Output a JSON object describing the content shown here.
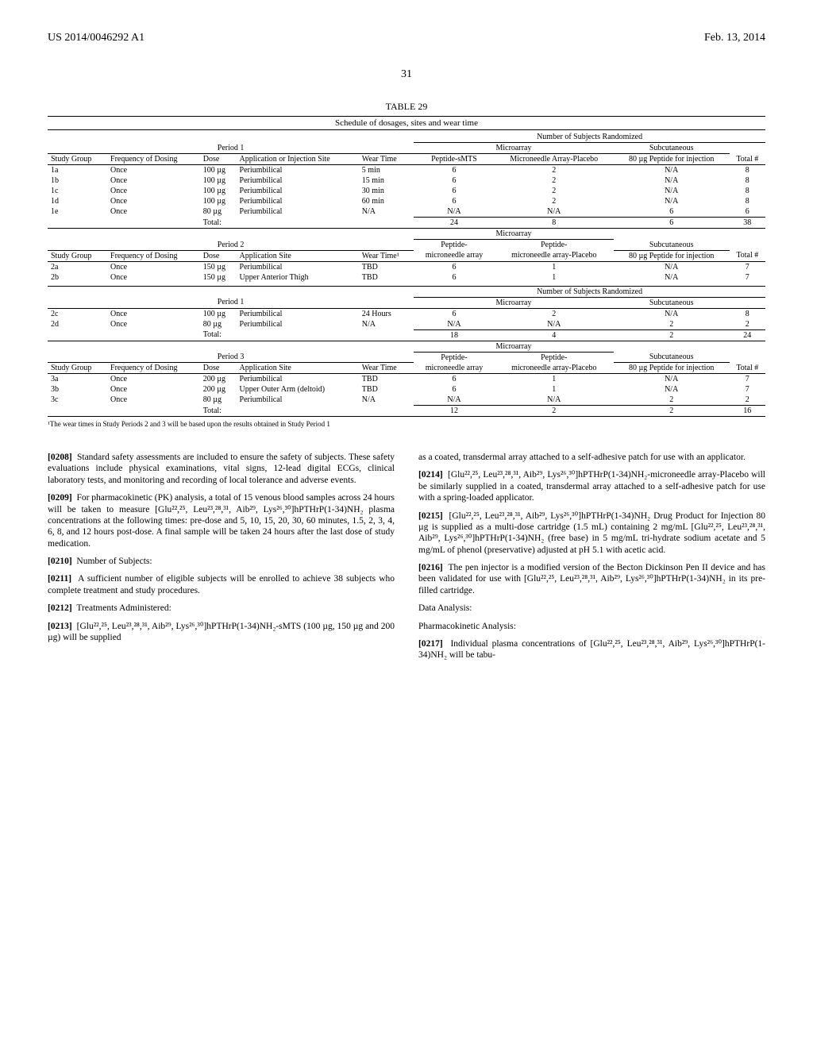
{
  "header": {
    "patent": "US 2014/0046292 A1",
    "date": "Feb. 13, 2014",
    "page": "31"
  },
  "table": {
    "title": "TABLE 29",
    "subtitle": "Schedule of dosages, sites and wear time",
    "footnote": "¹The wear times in Study Periods 2 and 3 will be based upon the results obtained in Study Period 1",
    "randomized_hdr": "Number of Subjects Randomized",
    "microarray": "Microarray",
    "subcutaneous": "Subcutaneous",
    "cols": {
      "study_group": "Study Group",
      "freq": "Frequency of Dosing",
      "dose": "Dose",
      "site": "Application or Injection Site",
      "site2": "Application Site",
      "wear": "Wear Time",
      "wear1": "Wear Time¹",
      "peptide_smts": "Peptide-sMTS",
      "mn_placebo": "Microneedle Array-Placebo",
      "peptide_mn": "Peptide-microneedle array",
      "peptide_mn_pl": "Peptide-microneedle array-Placebo",
      "inj": "80 µg Peptide for injection",
      "total": "Total #"
    },
    "periods": {
      "p1": "Period 1",
      "p2": "Period 2",
      "p3": "Period 3"
    },
    "rows1": [
      {
        "g": "1a",
        "f": "Once",
        "d": "100 µg",
        "s": "Periumbilical",
        "w": "5 min",
        "p": "6",
        "pl": "2",
        "inj": "N/A",
        "t": "8"
      },
      {
        "g": "1b",
        "f": "Once",
        "d": "100 µg",
        "s": "Periumbilical",
        "w": "15 min",
        "p": "6",
        "pl": "2",
        "inj": "N/A",
        "t": "8"
      },
      {
        "g": "1c",
        "f": "Once",
        "d": "100 µg",
        "s": "Periumbilical",
        "w": "30 min",
        "p": "6",
        "pl": "2",
        "inj": "N/A",
        "t": "8"
      },
      {
        "g": "1d",
        "f": "Once",
        "d": "100 µg",
        "s": "Periumbilical",
        "w": "60 min",
        "p": "6",
        "pl": "2",
        "inj": "N/A",
        "t": "8"
      },
      {
        "g": "1e",
        "f": "Once",
        "d": "80 µg",
        "s": "Periumbilical",
        "w": "N/A",
        "p": "N/A",
        "pl": "N/A",
        "inj": "6",
        "t": "6"
      }
    ],
    "total1": {
      "label": "Total:",
      "p": "24",
      "pl": "8",
      "inj": "6",
      "t": "38"
    },
    "rows2": [
      {
        "g": "2a",
        "f": "Once",
        "d": "150 µg",
        "s": "Periumbilical",
        "w": "TBD",
        "p": "6",
        "pl": "1",
        "inj": "N/A",
        "t": "7"
      },
      {
        "g": "2b",
        "f": "Once",
        "d": "150 µg",
        "s": "Upper Anterior Thigh",
        "w": "TBD",
        "p": "6",
        "pl": "1",
        "inj": "N/A",
        "t": "7"
      }
    ],
    "rows2b": [
      {
        "g": "2c",
        "f": "Once",
        "d": "100 µg",
        "s": "Periumbilical",
        "w": "24 Hours",
        "p": "6",
        "pl": "2",
        "inj": "N/A",
        "t": "8"
      },
      {
        "g": "2d",
        "f": "Once",
        "d": "80 µg",
        "s": "Periumbilical",
        "w": "N/A",
        "p": "N/A",
        "pl": "N/A",
        "inj": "2",
        "t": "2"
      }
    ],
    "total2": {
      "label": "Total:",
      "p": "18",
      "pl": "4",
      "inj": "2",
      "t": "24"
    },
    "rows3": [
      {
        "g": "3a",
        "f": "Once",
        "d": "200 µg",
        "s": "Periumbilical",
        "w": "TBD",
        "p": "6",
        "pl": "1",
        "inj": "N/A",
        "t": "7"
      },
      {
        "g": "3b",
        "f": "Once",
        "d": "200 µg",
        "s": "Upper Outer Arm (deltoid)",
        "w": "TBD",
        "p": "6",
        "pl": "1",
        "inj": "N/A",
        "t": "7"
      },
      {
        "g": "3c",
        "f": "Once",
        "d": "80 µg",
        "s": "Periumbilical",
        "w": "N/A",
        "p": "N/A",
        "pl": "N/A",
        "inj": "2",
        "t": "2"
      }
    ],
    "total3": {
      "label": "Total:",
      "p": "12",
      "pl": "2",
      "inj": "2",
      "t": "16"
    }
  },
  "left_col": {
    "p0208": "Standard safety assessments are included to ensure the safety of subjects. These safety evaluations include physical examinations, vital signs, 12-lead digital ECGs, clinical laboratory tests, and monitoring and recording of local tolerance and adverse events.",
    "p0209": "For pharmacokinetic (PK) analysis, a total of 15 venous blood samples across 24 hours will be taken to measure [Glu²²,²⁵, Leu²³,²⁸,³¹, Aib²⁹, Lys²⁶,³⁰]hPTHrP(1-34)NH₂ plasma concentrations at the following times: pre-dose and 5, 10, 15, 20, 30, 60 minutes, 1.5, 2, 3, 4, 6, 8, and 12 hours post-dose. A final sample will be taken 24 hours after the last dose of study medication.",
    "p0210": "Number of Subjects:",
    "p0211": "A sufficient number of eligible subjects will be enrolled to achieve 38 subjects who complete treatment and study procedures.",
    "p0212": "Treatments Administered:",
    "p0213": "[Glu²²,²⁵, Leu²³,²⁸,³¹, Aib²⁹, Lys²⁶,³⁰]hPTHrP(1-34)NH₂-sMTS (100 µg, 150 µg and 200 µg) will be supplied"
  },
  "right_col": {
    "cont": "as a coated, transdermal array attached to a self-adhesive patch for use with an applicator.",
    "p0214": "[Glu²²,²⁵, Leu²³,²⁸,³¹, Aib²⁹, Lys²⁶,³⁰]hPTHrP(1-34)NH₂-microneedle array-Placebo will be similarly supplied in a coated, transdermal array attached to a self-adhesive patch for use with a spring-loaded applicator.",
    "p0215": "[Glu²²,²⁵, Leu²³,²⁸,³¹, Aib²⁹, Lys²⁶,³⁰]hPTHrP(1-34)NH₂ Drug Product for Injection 80 µg is supplied as a multi-dose cartridge (1.5 mL) containing 2 mg/mL [Glu²²,²⁵, Leu²³,²⁸,³¹, Aib²⁹, Lys²⁶,³⁰]hPTHrP(1-34)NH₂ (free base) in 5 mg/mL tri-hydrate sodium acetate and 5 mg/mL of phenol (preservative) adjusted at pH 5.1 with acetic acid.",
    "p0216": "The pen injector is a modified version of the Becton Dickinson Pen II device and has been validated for use with [Glu²²,²⁵, Leu²³,²⁸,³¹, Aib²⁹, Lys²⁶,³⁰]hPTHrP(1-34)NH₂ in its pre-filled cartridge.",
    "data_analysis": "Data Analysis:",
    "pk_analysis": "Pharmacokinetic Analysis:",
    "p0217": "Individual plasma concentrations of [Glu²²,²⁵, Leu²³,²⁸,³¹, Aib²⁹, Lys²⁶,³⁰]hPTHrP(1-34)NH₂ will be tabu-"
  },
  "nums": {
    "n0208": "[0208]",
    "n0209": "[0209]",
    "n0210": "[0210]",
    "n0211": "[0211]",
    "n0212": "[0212]",
    "n0213": "[0213]",
    "n0214": "[0214]",
    "n0215": "[0215]",
    "n0216": "[0216]",
    "n0217": "[0217]"
  }
}
